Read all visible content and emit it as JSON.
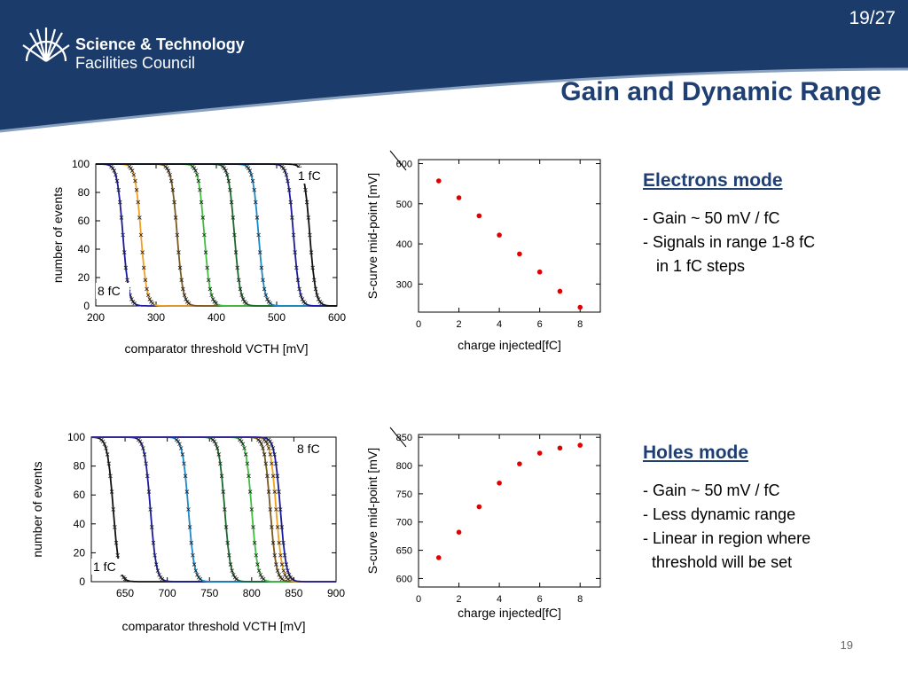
{
  "header": {
    "slide_counter": "19/27",
    "title": "Gain and Dynamic Range",
    "logo": {
      "line1": "Science & Technology",
      "line2": "Facilities Council"
    },
    "colors": {
      "navy": "#1b3c6a",
      "title": "#1f3f73"
    }
  },
  "electrons": {
    "heading": "Electrons mode",
    "bullets": [
      "- Gain ~ 50 mV / fC",
      "- Signals in range 1-8 fC",
      "   in 1 fC steps"
    ]
  },
  "holes": {
    "heading": "Holes mode",
    "bullets": [
      "- Gain ~ 50 mV / fC",
      "- Less dynamic range",
      "- Linear in region where",
      "  threshold will be set"
    ]
  },
  "page_number": "19",
  "chart_data": [
    {
      "type": "line",
      "id": "electrons-scurves",
      "xlabel": "comparator threshold VCTH [mV]",
      "ylabel": "number of events",
      "xlim": [
        200,
        600
      ],
      "ylim": [
        0,
        100
      ],
      "xticks": [
        200,
        300,
        400,
        500,
        600
      ],
      "yticks": [
        0,
        20,
        40,
        60,
        80,
        100
      ],
      "annotations": [
        {
          "text": "1 fC",
          "near": "right-top"
        },
        {
          "text": "8 fC",
          "near": "left-bottom"
        }
      ],
      "series": [
        {
          "midpoint": 245,
          "color": "#1a1aa0"
        },
        {
          "midpoint": 275,
          "color": "#f0a020"
        },
        {
          "midpoint": 335,
          "color": "#7a5a20"
        },
        {
          "midpoint": 380,
          "color": "#3fbf3f"
        },
        {
          "midpoint": 430,
          "color": "#1a6a2a"
        },
        {
          "midpoint": 470,
          "color": "#1c89c9"
        },
        {
          "midpoint": 528,
          "color": "#1a1aa0"
        },
        {
          "midpoint": 555,
          "color": "#111111"
        }
      ]
    },
    {
      "type": "scatter",
      "id": "electrons-midpoints",
      "xlabel": "charge injected[fC]",
      "ylabel": "S-curve mid-point [mV]",
      "xlim": [
        0,
        9
      ],
      "ylim": [
        230,
        610
      ],
      "xticks": [
        0,
        2,
        4,
        6,
        8
      ],
      "yticks": [
        300,
        400,
        500,
        600
      ],
      "x": [
        1,
        2,
        3,
        4,
        5,
        6,
        7,
        8
      ],
      "y": [
        557,
        515,
        470,
        422,
        375,
        330,
        282,
        242
      ],
      "color": "#e00000"
    },
    {
      "type": "line",
      "id": "holes-scurves",
      "xlabel": "comparator threshold VCTH [mV]",
      "ylabel": "number of events",
      "xlim": [
        610,
        900
      ],
      "ylim": [
        0,
        100
      ],
      "xticks": [
        650,
        700,
        750,
        800,
        850,
        900
      ],
      "yticks": [
        0,
        20,
        40,
        60,
        80,
        100
      ],
      "annotations": [
        {
          "text": "8 fC",
          "near": "right-top"
        },
        {
          "text": "1 fC",
          "near": "left-bottom"
        }
      ],
      "series": [
        {
          "midpoint": 636,
          "color": "#111111"
        },
        {
          "midpoint": 680,
          "color": "#1a1aa0"
        },
        {
          "midpoint": 725,
          "color": "#1c89c9"
        },
        {
          "midpoint": 768,
          "color": "#1a6a2a"
        },
        {
          "midpoint": 800,
          "color": "#3fbf3f"
        },
        {
          "midpoint": 822,
          "color": "#7a5a20"
        },
        {
          "midpoint": 829,
          "color": "#f0a020"
        },
        {
          "midpoint": 834,
          "color": "#1a1aa0"
        }
      ]
    },
    {
      "type": "scatter",
      "id": "holes-midpoints",
      "xlabel": "charge injected[fC]",
      "ylabel": "S-curve mid-point [mV]",
      "xlim": [
        0,
        9
      ],
      "ylim": [
        585,
        855
      ],
      "xticks": [
        0,
        2,
        4,
        6,
        8
      ],
      "yticks": [
        600,
        650,
        700,
        750,
        800,
        850
      ],
      "x": [
        1,
        2,
        3,
        4,
        5,
        6,
        7,
        8
      ],
      "y": [
        637,
        682,
        727,
        769,
        803,
        822,
        831,
        836
      ],
      "color": "#e00000"
    }
  ]
}
